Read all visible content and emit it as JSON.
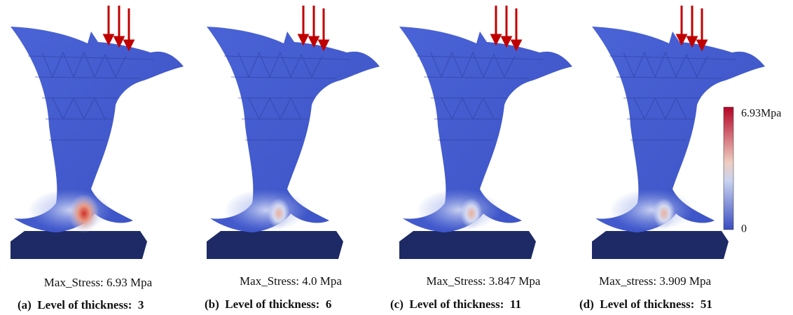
{
  "panels": [
    {
      "max_stress": "Max_Stress: 6.93 Mpa",
      "caption": "(a)  Level of thickness:  3"
    },
    {
      "max_stress": "Max_Stress: 4.0 Mpa",
      "caption": "(b)  Level of thickness:  6"
    },
    {
      "max_stress": "Max_Stress: 3.847 Mpa",
      "caption": "(c)  Level of thickness:  11"
    },
    {
      "max_stress": "Max_stress: 3.909 Mpa",
      "caption": "(d)  Level of thickness:  51"
    }
  ],
  "colorbar": {
    "max_label": "6.93Mpa",
    "min_label": "0"
  }
}
